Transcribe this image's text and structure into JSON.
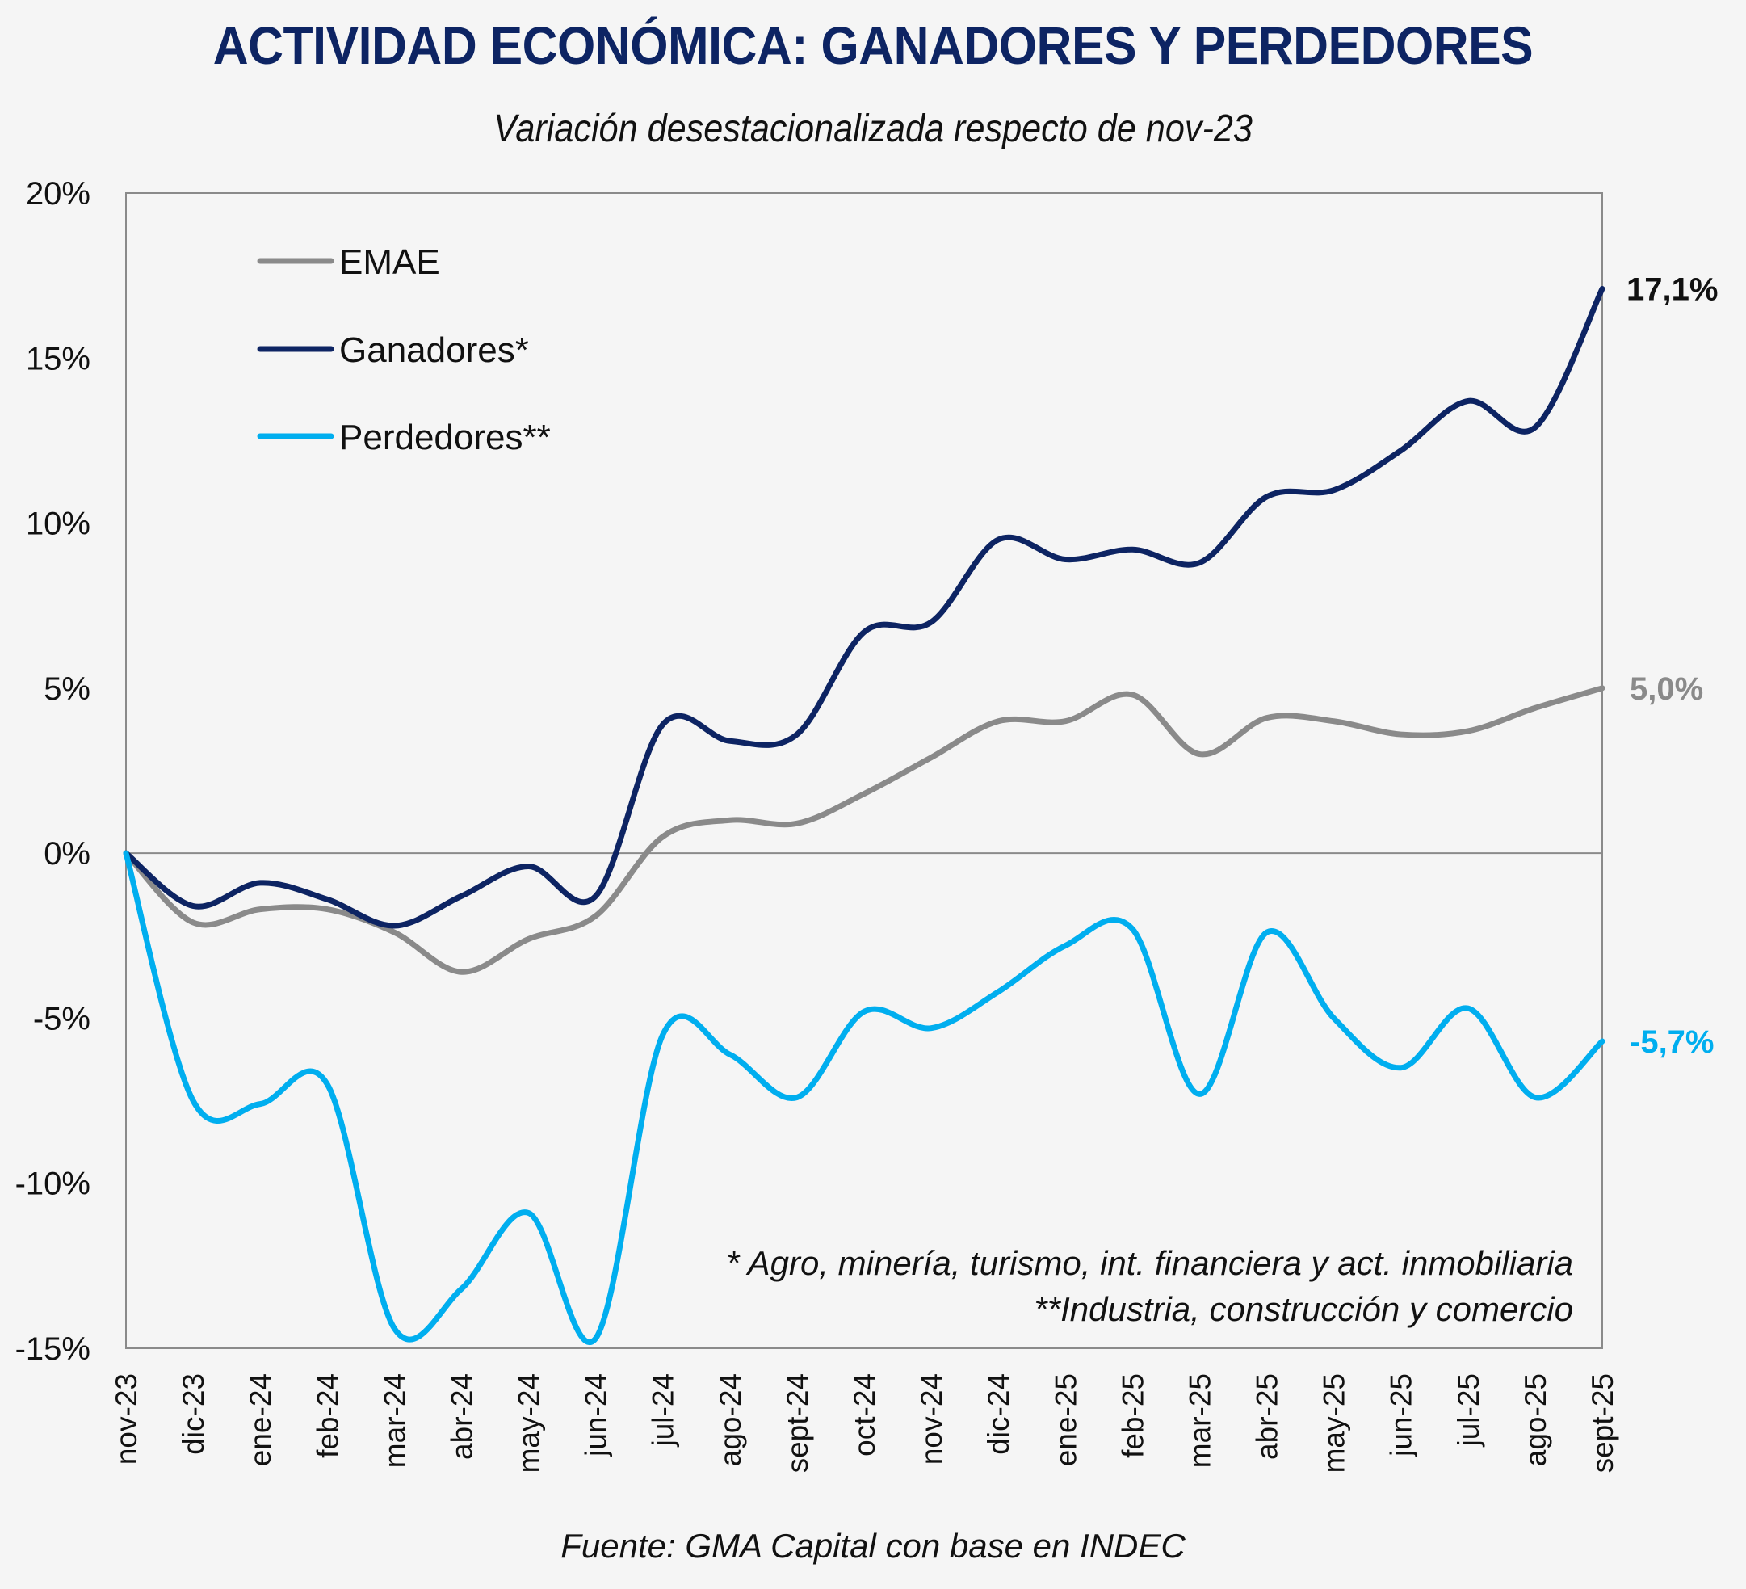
{
  "header": {
    "title": "ACTIVIDAD ECONÓMICA: GANADORES Y PERDEDORES",
    "subtitle": "Variación desestacionalizada respecto de nov-23"
  },
  "footnotes": {
    "line1": "* Agro, minería, turismo, int. financiera y act. inmobiliaria",
    "line2": "**Industria, construcción y comercio"
  },
  "source": "Fuente: GMA Capital con base en INDEC",
  "colors": {
    "emae": "#8a8a8a",
    "ganadores": "#0d2463",
    "perdedores": "#00aeef",
    "title": "#0d2463"
  },
  "chart_data": {
    "type": "line",
    "title": "ACTIVIDAD ECONÓMICA: GANADORES Y PERDEDORES",
    "subtitle": "Variación desestacionalizada respecto de nov-23",
    "xlabel": "",
    "ylabel": "",
    "ylim": [
      -15,
      20
    ],
    "yticks": [
      20,
      15,
      10,
      5,
      0,
      -5,
      -10,
      -15
    ],
    "ytick_labels": [
      "20%",
      "15%",
      "10%",
      "5%",
      "0%",
      "-5%",
      "-10%",
      "-15%"
    ],
    "grid": false,
    "legend_position": "top-left",
    "categories": [
      "nov-23",
      "dic-23",
      "ene-24",
      "feb-24",
      "mar-24",
      "abr-24",
      "may-24",
      "jun-24",
      "jul-24",
      "ago-24",
      "sept-24",
      "oct-24",
      "nov-24",
      "dic-24",
      "ene-25",
      "feb-25",
      "mar-25",
      "abr-25",
      "may-25",
      "jun-25",
      "jul-25",
      "ago-25",
      "sept-25"
    ],
    "series": [
      {
        "name": "EMAE",
        "key": "emae",
        "values": [
          0,
          -2.1,
          -1.7,
          -1.7,
          -2.4,
          -3.6,
          -2.6,
          -1.9,
          0.5,
          1.0,
          0.9,
          1.8,
          2.9,
          4.0,
          4.0,
          4.8,
          3.0,
          4.1,
          4.0,
          3.6,
          3.7,
          4.4,
          5.0
        ],
        "end_label": "5,0%"
      },
      {
        "name": "Ganadores*",
        "key": "ganadores",
        "values": [
          0,
          -1.6,
          -0.9,
          -1.4,
          -2.2,
          -1.3,
          -0.4,
          -1.3,
          3.9,
          3.4,
          3.6,
          6.7,
          7.0,
          9.5,
          8.9,
          9.2,
          8.8,
          10.8,
          11.0,
          12.2,
          13.7,
          12.9,
          17.1
        ],
        "end_label": "17,1%"
      },
      {
        "name": "Perdedores**",
        "key": "perdedores",
        "values": [
          0,
          -7.5,
          -7.6,
          -7.0,
          -14.4,
          -13.2,
          -10.9,
          -14.7,
          -5.5,
          -6.1,
          -7.4,
          -4.8,
          -5.3,
          -4.2,
          -2.8,
          -2.3,
          -7.3,
          -2.4,
          -5.0,
          -6.5,
          -4.7,
          -7.4,
          -5.7
        ],
        "end_label": "-5,7%"
      }
    ],
    "annotations": [
      "* Agro, minería, turismo, int. financiera y act. inmobiliaria",
      "**Industria, construcción y comercio"
    ]
  }
}
